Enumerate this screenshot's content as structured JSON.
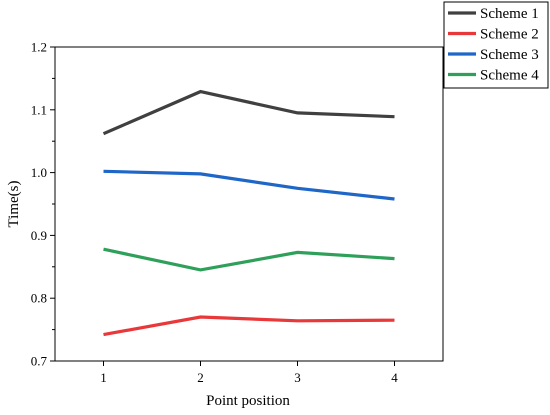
{
  "chart_data": {
    "type": "line",
    "title": "",
    "xlabel": "Point position",
    "ylabel": "Time(s)",
    "x": [
      1,
      2,
      3,
      4
    ],
    "x_ticks": [
      "1",
      "2",
      "3",
      "4"
    ],
    "xlim": [
      0.5,
      4.5
    ],
    "ylim": [
      0.7,
      1.2
    ],
    "y_ticks": [
      "0.7",
      "0.8",
      "0.9",
      "1.0",
      "1.1",
      "1.2"
    ],
    "grid": false,
    "legend_position": "top-right outside",
    "series": [
      {
        "name": "Scheme 1",
        "color": "#404040",
        "values": [
          1.062,
          1.129,
          1.095,
          1.089
        ]
      },
      {
        "name": "Scheme 2",
        "color": "#e8383a",
        "values": [
          0.742,
          0.77,
          0.764,
          0.765
        ]
      },
      {
        "name": "Scheme 3",
        "color": "#1e66c8",
        "values": [
          1.002,
          0.998,
          0.975,
          0.958
        ]
      },
      {
        "name": "Scheme 4",
        "color": "#2fa05a",
        "values": [
          0.878,
          0.845,
          0.873,
          0.863
        ]
      }
    ]
  }
}
